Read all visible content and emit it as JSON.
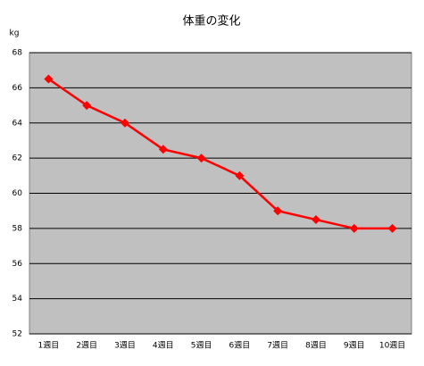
{
  "chart_data": {
    "type": "line",
    "title": "体重の変化",
    "y_label": "kg",
    "categories": [
      "1週目",
      "2週目",
      "3週目",
      "4週目",
      "5週目",
      "6週目",
      "7週目",
      "8週目",
      "9週目",
      "10週目"
    ],
    "values": [
      66.5,
      65,
      64,
      62.5,
      62,
      61,
      59,
      58.5,
      58,
      58
    ],
    "color": "#ff0000",
    "ylim": [
      52,
      68
    ],
    "yticks": [
      52,
      54,
      56,
      58,
      60,
      62,
      64,
      66,
      68
    ],
    "grid": true
  }
}
